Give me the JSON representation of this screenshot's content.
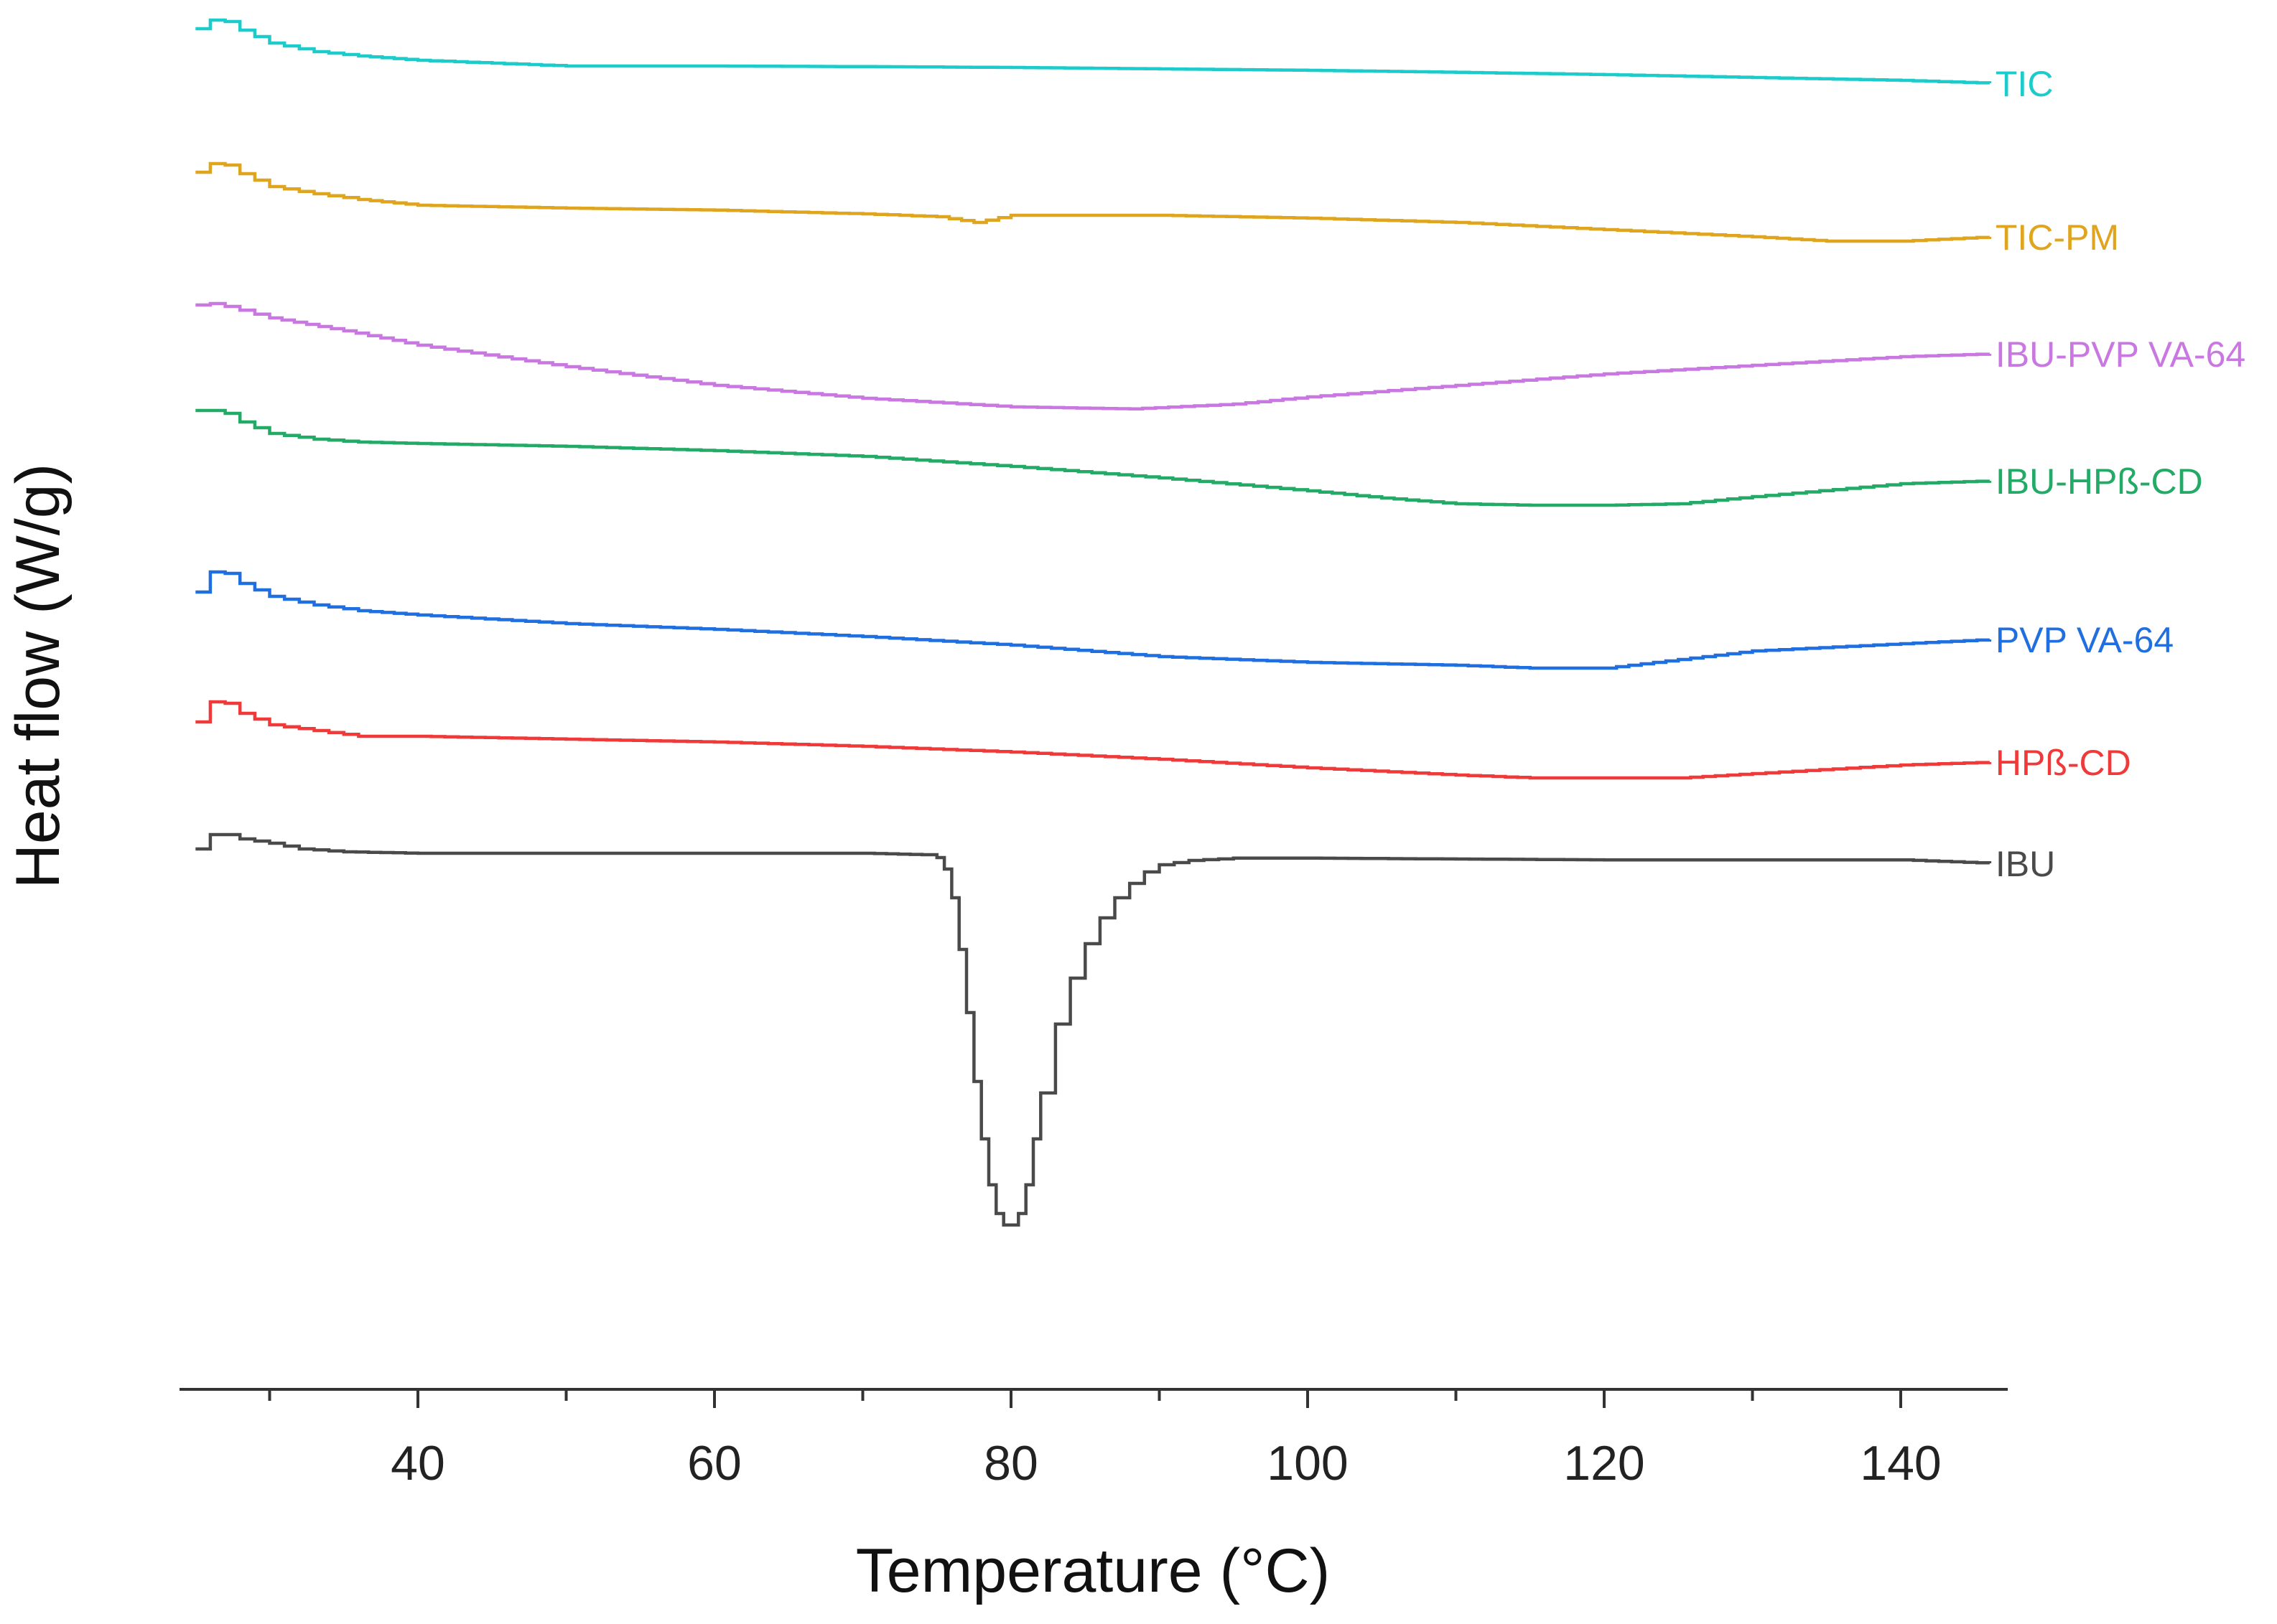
{
  "chart_data": {
    "type": "line",
    "title": "",
    "xlabel": "Temperature (°C)",
    "ylabel": "Heat flow (W/g)",
    "xlim": [
      24,
      148
    ],
    "x_ticks": [
      "40",
      "60",
      "80",
      "100",
      "120",
      "140"
    ],
    "y_axis_numbers_shown": false,
    "grid": false,
    "legend": "inline labels at right end of each curve",
    "series": [
      {
        "name": "TIC",
        "color": "#1ecbcb",
        "x": [
          25,
          26,
          27,
          28,
          30,
          33,
          36,
          40,
          45,
          50,
          60,
          70,
          80,
          90,
          100,
          110,
          120,
          130,
          140,
          146
        ],
        "y": [
          -0.3,
          0.0,
          -0.05,
          -0.35,
          -0.8,
          -1.1,
          -1.25,
          -1.4,
          -1.5,
          -1.6,
          -1.6,
          -1.62,
          -1.65,
          -1.7,
          -1.75,
          -1.82,
          -1.9,
          -2.0,
          -2.1,
          -2.2
        ]
      },
      {
        "name": "TIC-PM",
        "color": "#e0a51f",
        "x": [
          25,
          26,
          27,
          28,
          30,
          33,
          36,
          40,
          50,
          60,
          70,
          75,
          77.5,
          80,
          85,
          90,
          100,
          110,
          120,
          130,
          135,
          140,
          146
        ],
        "y": [
          -0.3,
          0.0,
          -0.05,
          -0.35,
          -0.8,
          -1.05,
          -1.25,
          -1.45,
          -1.55,
          -1.62,
          -1.75,
          -1.85,
          -2.05,
          -1.8,
          -1.8,
          -1.8,
          -1.9,
          -2.05,
          -2.3,
          -2.55,
          -2.7,
          -2.7,
          -2.55
        ]
      },
      {
        "name": "IBU-PVP VA-64",
        "color": "#c878e0",
        "x": [
          25,
          26,
          27,
          30,
          35,
          40,
          50,
          60,
          70,
          80,
          88,
          95,
          100,
          110,
          120,
          130,
          140,
          146
        ],
        "y": [
          0.0,
          0.05,
          -0.05,
          -0.45,
          -0.9,
          -1.4,
          -2.15,
          -2.8,
          -3.25,
          -3.55,
          -3.62,
          -3.45,
          -3.2,
          -2.8,
          -2.4,
          -2.1,
          -1.8,
          -1.7
        ]
      },
      {
        "name": "IBU-HPß-CD",
        "color": "#22aa66",
        "x": [
          25,
          26,
          27,
          28,
          30,
          33,
          36,
          40,
          50,
          60,
          70,
          80,
          90,
          100,
          105,
          110,
          115,
          120,
          125,
          130,
          140,
          146
        ],
        "y": [
          0.0,
          0.0,
          -0.1,
          -0.4,
          -0.8,
          -1.0,
          -1.1,
          -1.15,
          -1.25,
          -1.4,
          -1.6,
          -1.95,
          -2.35,
          -2.8,
          -3.05,
          -3.25,
          -3.3,
          -3.3,
          -3.25,
          -3.0,
          -2.55,
          -2.45
        ]
      },
      {
        "name": "PVP VA-64",
        "color": "#1f6fe0",
        "x": [
          25,
          26,
          27,
          28,
          30,
          33,
          36,
          40,
          50,
          60,
          70,
          80,
          90,
          100,
          110,
          115,
          120,
          125,
          130,
          140,
          146
        ],
        "y": [
          -0.7,
          0.0,
          -0.05,
          -0.4,
          -0.85,
          -1.15,
          -1.35,
          -1.5,
          -1.8,
          -2.0,
          -2.25,
          -2.55,
          -2.95,
          -3.15,
          -3.25,
          -3.35,
          -3.35,
          -3.05,
          -2.75,
          -2.5,
          -2.35
        ]
      },
      {
        "name": "HPß-CD",
        "color": "#f03a3a",
        "x": [
          25,
          26,
          27,
          28,
          30,
          33,
          36,
          40,
          50,
          60,
          70,
          80,
          90,
          100,
          110,
          115,
          120,
          125,
          130,
          140,
          146
        ],
        "y": [
          -0.7,
          0.0,
          -0.05,
          -0.4,
          -0.8,
          -1.0,
          -1.2,
          -1.2,
          -1.3,
          -1.4,
          -1.55,
          -1.75,
          -2.0,
          -2.3,
          -2.55,
          -2.65,
          -2.65,
          -2.65,
          -2.5,
          -2.2,
          -2.1
        ]
      },
      {
        "name": "IBU",
        "color": "#4a4a4a",
        "x": [
          25,
          26,
          27,
          28,
          30,
          32,
          35,
          40,
          50,
          60,
          70,
          74,
          75,
          75.5,
          76,
          76.5,
          77,
          77.5,
          78,
          78.5,
          79,
          79.5,
          80,
          80.5,
          81,
          81.5,
          82,
          83,
          84,
          85,
          86,
          87,
          88,
          89,
          90,
          92,
          95,
          100,
          110,
          120,
          130,
          140,
          146
        ],
        "y": [
          -0.5,
          0.0,
          0.0,
          -0.15,
          -0.3,
          -0.5,
          -0.6,
          -0.65,
          -0.65,
          -0.65,
          -0.65,
          -0.7,
          -0.8,
          -1.2,
          -2.2,
          -4.0,
          -6.2,
          -8.6,
          -10.6,
          -12.2,
          -13.2,
          -13.6,
          -13.6,
          -13.2,
          -12.2,
          -10.6,
          -9.0,
          -6.6,
          -5.0,
          -3.8,
          -2.9,
          -2.2,
          -1.7,
          -1.3,
          -1.05,
          -0.9,
          -0.82,
          -0.82,
          -0.85,
          -0.88,
          -0.88,
          -0.88,
          -1.0
        ]
      }
    ]
  }
}
